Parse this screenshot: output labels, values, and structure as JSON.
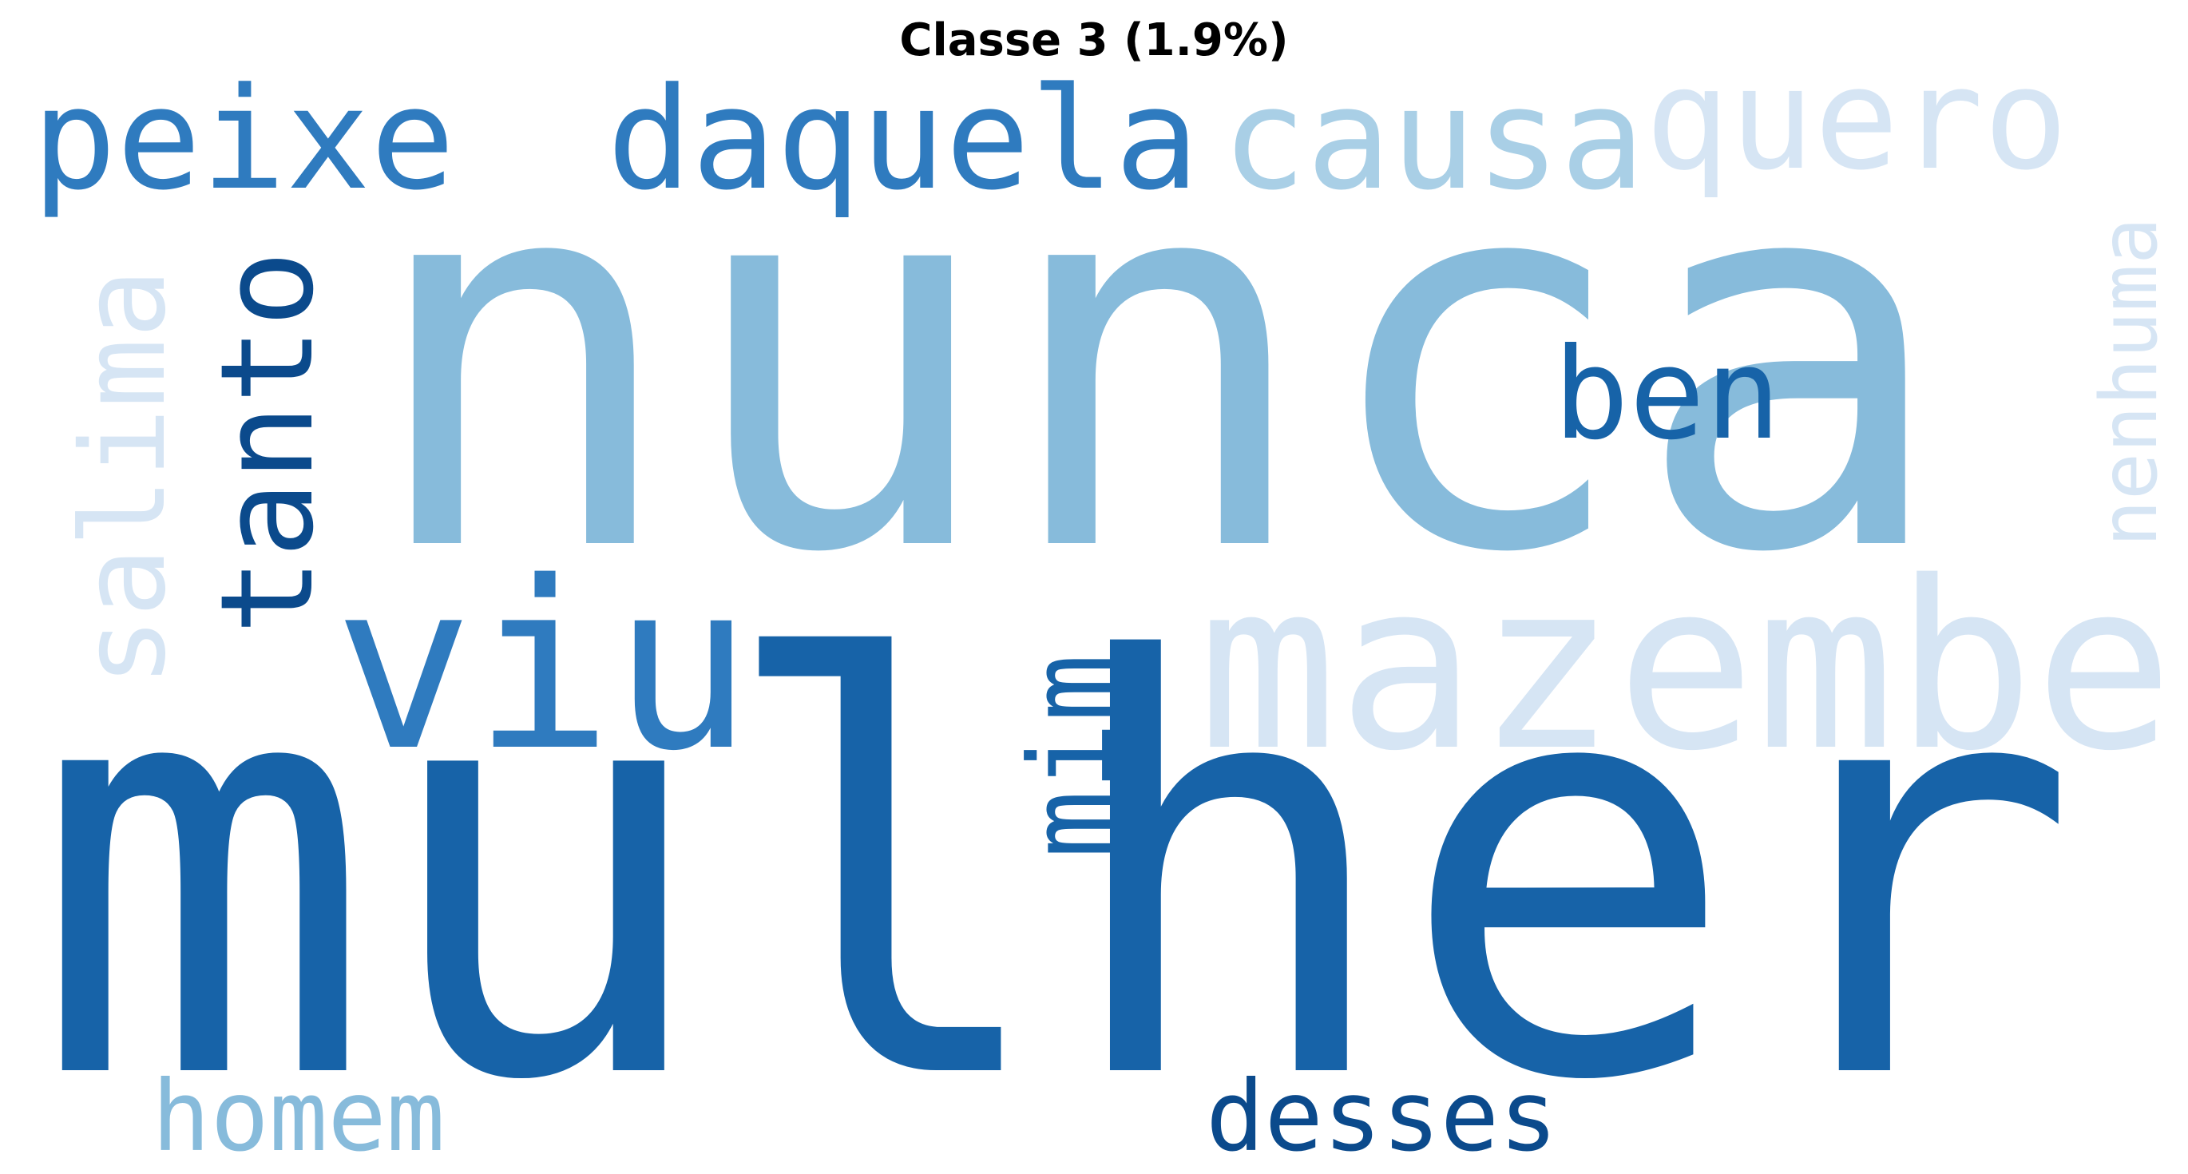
{
  "title": "Classe 3 (1.9%)",
  "palette": {
    "darkest": "#0b4a8c",
    "dark": "#1763a8",
    "medium": "#2f7bbf",
    "light": "#87bbdb",
    "lighter": "#a9cfe6",
    "faint": "#d6e5f4"
  },
  "words": [
    {
      "text": "nunca",
      "color": "#87bbdb",
      "orientation": "horizontal"
    },
    {
      "text": "mulher",
      "color": "#1763a8",
      "orientation": "horizontal"
    },
    {
      "text": "viu",
      "color": "#2f7bbf",
      "orientation": "horizontal"
    },
    {
      "text": "mazembe",
      "color": "#d6e5f4",
      "orientation": "horizontal"
    },
    {
      "text": "peixe",
      "color": "#2f7bbf",
      "orientation": "horizontal"
    },
    {
      "text": "daquela",
      "color": "#2f7bbf",
      "orientation": "horizontal"
    },
    {
      "text": "causa",
      "color": "#a9cfe6",
      "orientation": "horizontal"
    },
    {
      "text": "quero",
      "color": "#d6e5f4",
      "orientation": "horizontal"
    },
    {
      "text": "ben",
      "color": "#1763a8",
      "orientation": "horizontal"
    },
    {
      "text": "tanto",
      "color": "#0b4a8c",
      "orientation": "vertical"
    },
    {
      "text": "salima",
      "color": "#d6e5f4",
      "orientation": "vertical"
    },
    {
      "text": "nenhuma",
      "color": "#d6e5f4",
      "orientation": "vertical"
    },
    {
      "text": "mim",
      "color": "#1763a8",
      "orientation": "vertical"
    },
    {
      "text": "homem",
      "color": "#87bbdb",
      "orientation": "horizontal"
    },
    {
      "text": "desses",
      "color": "#0b4a8c",
      "orientation": "horizontal"
    }
  ]
}
